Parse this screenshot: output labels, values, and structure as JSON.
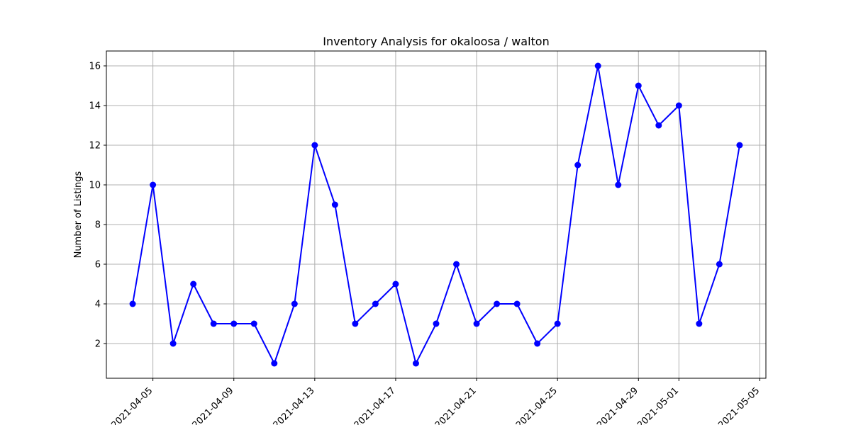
{
  "chart_data": {
    "type": "line",
    "title": "Inventory Analysis for okaloosa / walton",
    "xlabel": "",
    "ylabel": "Number of Listings",
    "x": [
      "2021-04-04",
      "2021-04-05",
      "2021-04-06",
      "2021-04-07",
      "2021-04-08",
      "2021-04-09",
      "2021-04-10",
      "2021-04-11",
      "2021-04-12",
      "2021-04-13",
      "2021-04-14",
      "2021-04-15",
      "2021-04-16",
      "2021-04-17",
      "2021-04-18",
      "2021-04-19",
      "2021-04-20",
      "2021-04-21",
      "2021-04-22",
      "2021-04-23",
      "2021-04-24",
      "2021-04-25",
      "2021-04-26",
      "2021-04-27",
      "2021-04-28",
      "2021-04-29",
      "2021-04-30",
      "2021-05-01",
      "2021-05-02",
      "2021-05-03",
      "2021-05-04"
    ],
    "series": [
      {
        "values": [
          4,
          10,
          2,
          5,
          3,
          3,
          3,
          1,
          4,
          12,
          9,
          3,
          4,
          5,
          1,
          3,
          6,
          3,
          4,
          4,
          2,
          3,
          11,
          16,
          10,
          15,
          13,
          14,
          3,
          6,
          12
        ],
        "color": "#0000ff",
        "marker": "circle"
      }
    ],
    "x_ticks": [
      "2021-04-05",
      "2021-04-09",
      "2021-04-13",
      "2021-04-17",
      "2021-04-21",
      "2021-04-25",
      "2021-04-29",
      "2021-05-01",
      "2021-05-05"
    ],
    "y_ticks": [
      2,
      4,
      6,
      8,
      10,
      12,
      14,
      16
    ],
    "xlim": [
      "2021-04-02",
      "2021-05-05"
    ],
    "ylim": [
      0.25,
      16.75
    ],
    "grid": true,
    "legend": "none"
  }
}
